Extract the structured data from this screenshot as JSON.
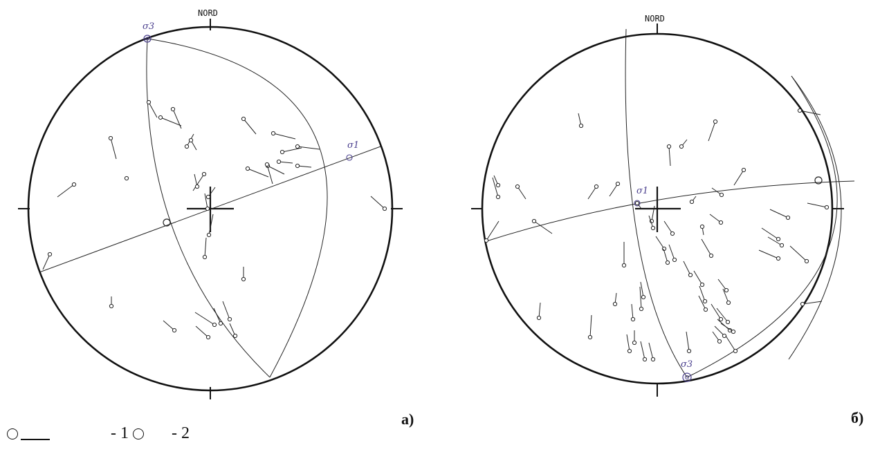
{
  "diagrams": [
    {
      "id": "a",
      "panel_label": "а)",
      "north_label": "NORD",
      "sigma_labels": [
        "σ3",
        "σ1"
      ]
    },
    {
      "id": "b",
      "panel_label": "б)",
      "north_label": "NORD",
      "sigma_labels": [
        "σ1",
        "σ3"
      ]
    }
  ],
  "legend": {
    "item1_text": "- 1",
    "item2_text": "- 2"
  },
  "colors": {
    "ink": "#111111",
    "sigma": "#4a3f8e",
    "highlight": "#b04a3a"
  }
}
